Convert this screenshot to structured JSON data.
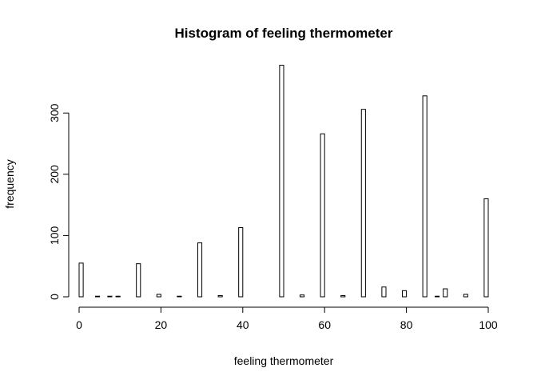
{
  "chart_data": {
    "type": "bar",
    "title": "Histogram of feeling thermometer",
    "xlabel": "feeling thermometer",
    "ylabel": "frequency",
    "xlim": [
      0,
      100
    ],
    "ylim": [
      0,
      380
    ],
    "x_ticks": [
      0,
      20,
      40,
      60,
      80,
      100
    ],
    "y_ticks": [
      0,
      100,
      200,
      300
    ],
    "bin_width": 1,
    "grid": false,
    "bars": [
      {
        "x": 0,
        "value": 55
      },
      {
        "x": 4,
        "value": 1
      },
      {
        "x": 7,
        "value": 1
      },
      {
        "x": 9,
        "value": 1
      },
      {
        "x": 14,
        "value": 54
      },
      {
        "x": 19,
        "value": 4
      },
      {
        "x": 24,
        "value": 1
      },
      {
        "x": 29,
        "value": 88
      },
      {
        "x": 34,
        "value": 2
      },
      {
        "x": 39,
        "value": 113
      },
      {
        "x": 49,
        "value": 378
      },
      {
        "x": 54,
        "value": 3
      },
      {
        "x": 59,
        "value": 266
      },
      {
        "x": 64,
        "value": 2
      },
      {
        "x": 69,
        "value": 306
      },
      {
        "x": 74,
        "value": 16
      },
      {
        "x": 79,
        "value": 10
      },
      {
        "x": 84,
        "value": 328
      },
      {
        "x": 87,
        "value": 1
      },
      {
        "x": 89,
        "value": 13
      },
      {
        "x": 94,
        "value": 4
      },
      {
        "x": 99,
        "value": 160
      }
    ]
  }
}
